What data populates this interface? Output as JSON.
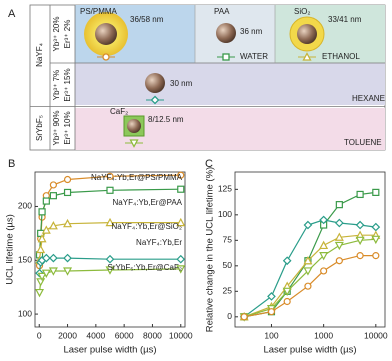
{
  "panel_a": {
    "label": "A",
    "hosts": [
      "NaYF₄",
      "SrYbF₅"
    ],
    "rows": [
      {
        "dopants": [
          "Yb³⁺ 20%",
          "Er³⁺ 2%"
        ],
        "cells": [
          {
            "shell": "PS/PMMA",
            "size": "36/58 nm"
          },
          {
            "shell": "PAA",
            "size": "36 nm"
          },
          {
            "shell": "SiO₂",
            "size": "33/41 nm"
          }
        ],
        "solvents": [
          "WATER",
          "ETHANOL"
        ]
      },
      {
        "dopants": [
          "Yb³⁺ 7%",
          "Er³⁺ 15%"
        ],
        "cells": [
          {
            "size": "30 nm"
          }
        ],
        "solvents": [
          "HEXANE"
        ]
      },
      {
        "dopants": [
          "Yb³⁺ 90%",
          "Er³⁺ 10%"
        ],
        "cells": [
          {
            "shell": "CaF₂",
            "size": "8/12.5 nm"
          }
        ],
        "solvents": [
          "TOLUENE"
        ]
      }
    ]
  },
  "chart_data": [
    {
      "type": "line",
      "label": "B",
      "xlabel": "Laser pulse width (µs)",
      "ylabel": "UCL lifetime (µs)",
      "x": [
        20,
        100,
        200,
        500,
        1000,
        2000,
        5000,
        10000
      ],
      "xlim": [
        -300,
        10300
      ],
      "xticks": [
        0,
        2000,
        4000,
        6000,
        8000,
        10000
      ],
      "ylim": [
        88,
        232
      ],
      "yticks": [
        100,
        150,
        200
      ],
      "series": [
        {
          "name": "NaYF₄:Yb,Er@PS/PMMA",
          "color": "#d98c2a",
          "marker": "circle",
          "values": [
            145,
            170,
            190,
            210,
            220,
            225,
            228,
            229
          ]
        },
        {
          "name": "NaYF₄:Yb,Er@PAA",
          "color": "#3a9a4a",
          "marker": "square",
          "values": [
            155,
            175,
            195,
            205,
            210,
            213,
            215,
            216
          ]
        },
        {
          "name": "NaYF₄:Yb,Er@SiO₂",
          "color": "#c7b43a",
          "marker": "triangle",
          "values": [
            150,
            160,
            170,
            178,
            182,
            184,
            185,
            185
          ]
        },
        {
          "name": "NaYF₄:Yb,Er",
          "color": "#2a9d8a",
          "marker": "diamond",
          "values": [
            138,
            148,
            150,
            152,
            152,
            152,
            151,
            151
          ]
        },
        {
          "name": "SrYbF₅:Yb,Er@CaF₂",
          "color": "#8dbb3d",
          "marker": "down-triangle",
          "values": [
            120,
            130,
            135,
            138,
            140,
            140,
            141,
            142
          ]
        }
      ]
    },
    {
      "type": "line",
      "label": "C",
      "xlabel": "Laser pulse width (µs)",
      "ylabel": "Relative change in the UCL lifetime (%)",
      "xscale": "log",
      "x": [
        30,
        100,
        200,
        500,
        1000,
        2000,
        5000,
        10000
      ],
      "xlim": [
        20,
        15000
      ],
      "xticks": [
        100,
        1000,
        10000
      ],
      "ylim": [
        -10,
        142
      ],
      "yticks": [
        0,
        25,
        50,
        75,
        100,
        125
      ],
      "series": [
        {
          "color": "#3a9a4a",
          "marker": "square",
          "values": [
            0,
            5,
            25,
            55,
            90,
            110,
            120,
            122
          ]
        },
        {
          "color": "#2a9d8a",
          "marker": "diamond",
          "values": [
            0,
            20,
            55,
            90,
            95,
            92,
            90,
            88
          ]
        },
        {
          "color": "#c7b43a",
          "marker": "triangle",
          "values": [
            0,
            10,
            30,
            55,
            70,
            78,
            80,
            80
          ]
        },
        {
          "color": "#8dbb3d",
          "marker": "down-triangle",
          "values": [
            0,
            8,
            25,
            45,
            60,
            70,
            75,
            76
          ]
        },
        {
          "color": "#d98c2a",
          "marker": "circle",
          "values": [
            0,
            5,
            15,
            30,
            45,
            55,
            60,
            60
          ]
        }
      ]
    }
  ]
}
